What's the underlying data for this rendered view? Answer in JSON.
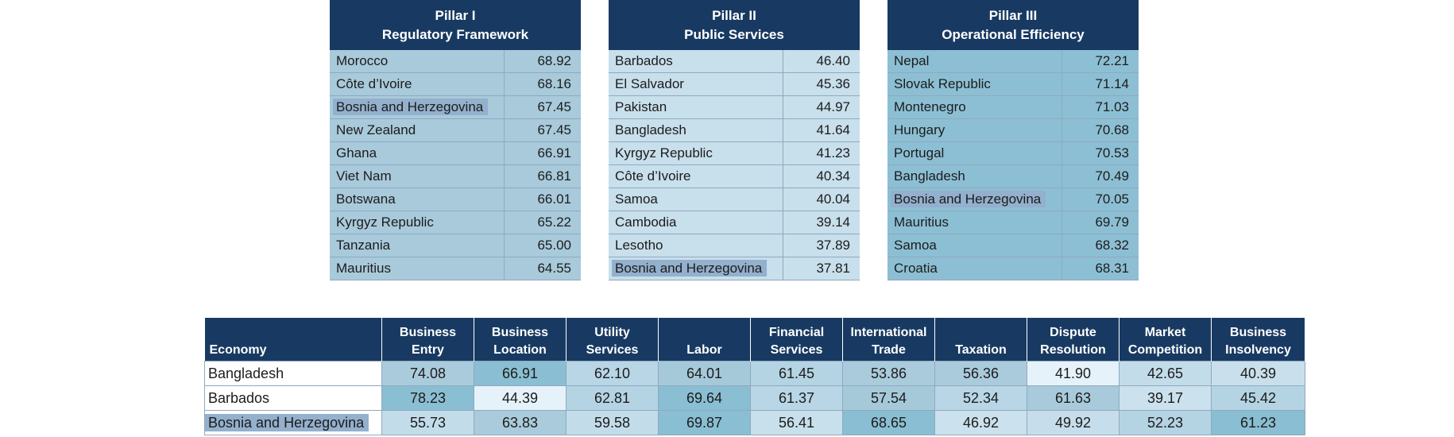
{
  "pillars": [
    {
      "title": "Pillar I",
      "subtitle": "Regulatory Framework",
      "bg": "#a8cadb",
      "rows": [
        {
          "name": "Morocco",
          "value": "68.92"
        },
        {
          "name": "Côte d’Ivoire",
          "value": "68.16"
        },
        {
          "name": "Bosnia and Herzegovina",
          "value": "67.45",
          "highlight": true
        },
        {
          "name": "New Zealand",
          "value": "67.45"
        },
        {
          "name": "Ghana",
          "value": "66.91"
        },
        {
          "name": "Viet Nam",
          "value": "66.81"
        },
        {
          "name": "Botswana",
          "value": "66.01"
        },
        {
          "name": "Kyrgyz Republic",
          "value": "65.22"
        },
        {
          "name": "Tanzania",
          "value": "65.00"
        },
        {
          "name": "Mauritius",
          "value": "64.55"
        }
      ]
    },
    {
      "title": "Pillar II",
      "subtitle": "Public Services",
      "bg": "#c8dfec",
      "rows": [
        {
          "name": "Barbados",
          "value": "46.40"
        },
        {
          "name": "El Salvador",
          "value": "45.36"
        },
        {
          "name": "Pakistan",
          "value": "44.97"
        },
        {
          "name": "Bangladesh",
          "value": "41.64"
        },
        {
          "name": "Kyrgyz Republic",
          "value": "41.23"
        },
        {
          "name": "Côte d’Ivoire",
          "value": "40.34"
        },
        {
          "name": "Samoa",
          "value": "40.04"
        },
        {
          "name": "Cambodia",
          "value": "39.14"
        },
        {
          "name": "Lesotho",
          "value": "37.89"
        },
        {
          "name": "Bosnia and Herzegovina",
          "value": "37.81",
          "highlight": true
        }
      ]
    },
    {
      "title": "Pillar III",
      "subtitle": "Operational Efficiency",
      "bg": "#8cbfd3",
      "rows": [
        {
          "name": "Nepal",
          "value": "72.21"
        },
        {
          "name": "Slovak Republic",
          "value": "71.14"
        },
        {
          "name": "Montenegro",
          "value": "71.03"
        },
        {
          "name": "Hungary",
          "value": "70.68"
        },
        {
          "name": "Portugal",
          "value": "70.53"
        },
        {
          "name": "Bangladesh",
          "value": "70.49"
        },
        {
          "name": "Bosnia and Herzegovina",
          "value": "70.05",
          "highlight": true
        },
        {
          "name": "Mauritius",
          "value": "69.79"
        },
        {
          "name": "Samoa",
          "value": "68.32"
        },
        {
          "name": "Croatia",
          "value": "68.31"
        }
      ]
    }
  ],
  "comparison": {
    "economy_label": "Economy",
    "columns": [
      [
        "Business",
        "Entry"
      ],
      [
        "Business",
        "Location"
      ],
      [
        "Utility",
        "Services"
      ],
      [
        "",
        "Labor"
      ],
      [
        "Financial",
        "Services"
      ],
      [
        "International",
        "Trade"
      ],
      [
        "",
        "Taxation"
      ],
      [
        "Dispute",
        "Resolution"
      ],
      [
        "Market",
        "Competition"
      ],
      [
        "Business",
        "Insolvency"
      ]
    ],
    "rows": [
      {
        "name": "Bangladesh",
        "values": [
          "74.08",
          "66.91",
          "62.10",
          "64.01",
          "61.45",
          "53.86",
          "56.36",
          "41.90",
          "42.65",
          "40.39"
        ],
        "colors": [
          "#aacbdc",
          "#8abed2",
          "#b8d6e6",
          "#a6c9da",
          "#b4d3e3",
          "#aacbdc",
          "#aacbdc",
          "#e6f2fa",
          "#c2dcea",
          "#c9e0ec"
        ]
      },
      {
        "name": "Barbados",
        "values": [
          "78.23",
          "44.39",
          "62.81",
          "69.64",
          "61.37",
          "57.54",
          "52.34",
          "61.63",
          "39.17",
          "45.42"
        ],
        "colors": [
          "#8abed2",
          "#e6f2fa",
          "#b4d3e3",
          "#8abed2",
          "#b8d6e6",
          "#a6c9da",
          "#b8d6e6",
          "#a8cadb",
          "#cbe1ed",
          "#b4d3e3"
        ]
      },
      {
        "name": "Bosnia and Herzegovina",
        "highlight": true,
        "values": [
          "55.73",
          "63.83",
          "59.58",
          "69.87",
          "56.41",
          "68.65",
          "46.92",
          "49.92",
          "52.23",
          "61.23"
        ],
        "colors": [
          "#c2dcea",
          "#aacbdc",
          "#c2dcea",
          "#8abed2",
          "#c8dfec",
          "#8abed2",
          "#cbe1ed",
          "#c6deeb",
          "#b4d3e3",
          "#8abed2"
        ]
      }
    ]
  }
}
